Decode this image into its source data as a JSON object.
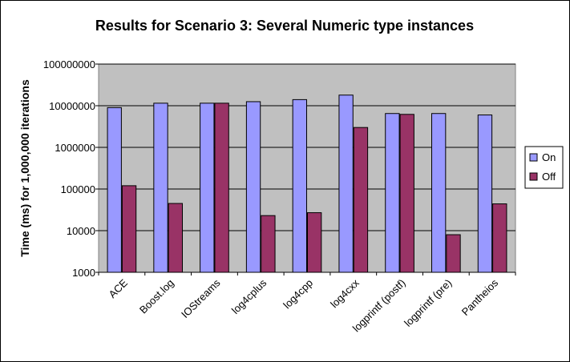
{
  "chart_data": {
    "type": "bar",
    "title": "Results for Scenario 3: Several Numeric type instances",
    "xlabel": "",
    "ylabel": "Time (ms) for 1,000,000 iterations",
    "yscale": "log",
    "ylim": [
      1000,
      100000000
    ],
    "yticks": [
      "1000",
      "10000",
      "100000",
      "1000000",
      "10000000",
      "100000000"
    ],
    "grid": true,
    "legend_position": "right",
    "categories": [
      "ACE",
      "Boost.log",
      "IOStreams",
      "log4cplus",
      "log4cpp",
      "log4cxx",
      "logprintf (postf)",
      "logprintf (pre)",
      "Pantheios"
    ],
    "series": [
      {
        "name": "On",
        "color": "#9999ff",
        "values": [
          9000000,
          11500000,
          11500000,
          12500000,
          14000000,
          18000000,
          6500000,
          6500000,
          6000000
        ]
      },
      {
        "name": "Off",
        "color": "#993366",
        "values": [
          120000,
          45000,
          11500000,
          23000,
          27000,
          3000000,
          6200000,
          8000,
          44000
        ]
      }
    ],
    "plot_background": "#c0c0c0"
  }
}
